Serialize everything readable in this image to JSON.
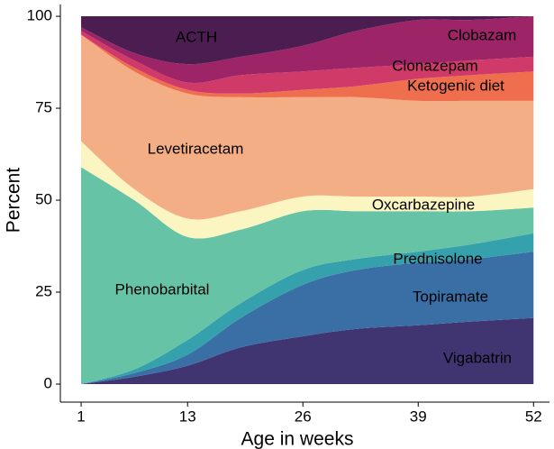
{
  "chart_data": {
    "type": "stacked_area",
    "x_label": "Age in weeks",
    "y_label": "Percent",
    "x": [
      1,
      7,
      13,
      19,
      26,
      32,
      39,
      45,
      52
    ],
    "xlim": [
      -1.34,
      53.8
    ],
    "ylim": [
      -4.9,
      103.2
    ],
    "xticks": [
      1,
      13,
      26,
      39,
      52
    ],
    "yticks": [
      0,
      25,
      50,
      75,
      100
    ],
    "series": [
      {
        "name": "Vigabatrin",
        "color": "#403571",
        "values": [
          0,
          2,
          5,
          10,
          13,
          15,
          16,
          17,
          18
        ]
      },
      {
        "name": "Topiramate",
        "color": "#3a6fa6",
        "values": [
          0,
          1,
          3,
          8,
          14,
          16,
          17,
          17,
          18
        ]
      },
      {
        "name": "Prednisolone",
        "color": "#35a1ac",
        "values": [
          0,
          1,
          4,
          4,
          4,
          3,
          3,
          4,
          5
        ]
      },
      {
        "name": "Phenobarbital",
        "color": "#67c3a6",
        "values": [
          59,
          46,
          28,
          20,
          16,
          13,
          11,
          9,
          7
        ]
      },
      {
        "name": "Oxcarbazepine",
        "color": "#fbf5c2",
        "values": [
          7,
          3,
          5,
          5,
          4,
          4,
          4,
          4,
          5
        ]
      },
      {
        "name": "Levetiracetam",
        "color": "#f4ae86",
        "values": [
          29,
          32,
          34,
          31,
          27,
          27,
          26,
          26,
          24
        ]
      },
      {
        "name": "Ketogenic diet",
        "color": "#ef6e4e",
        "values": [
          0,
          1,
          1,
          1,
          2,
          3,
          6,
          7,
          8
        ]
      },
      {
        "name": "Clonazepam",
        "color": "#d03a68",
        "values": [
          1,
          2,
          2,
          5,
          5,
          5,
          4,
          4,
          4
        ]
      },
      {
        "name": "Clobazam",
        "color": "#9e2468",
        "values": [
          1,
          2,
          5,
          5,
          7,
          10,
          12,
          11,
          11
        ]
      },
      {
        "name": "ACTH",
        "color": "#4c1d50",
        "values": [
          3,
          10,
          13,
          11,
          8,
          4,
          1,
          1,
          0
        ]
      }
    ]
  }
}
